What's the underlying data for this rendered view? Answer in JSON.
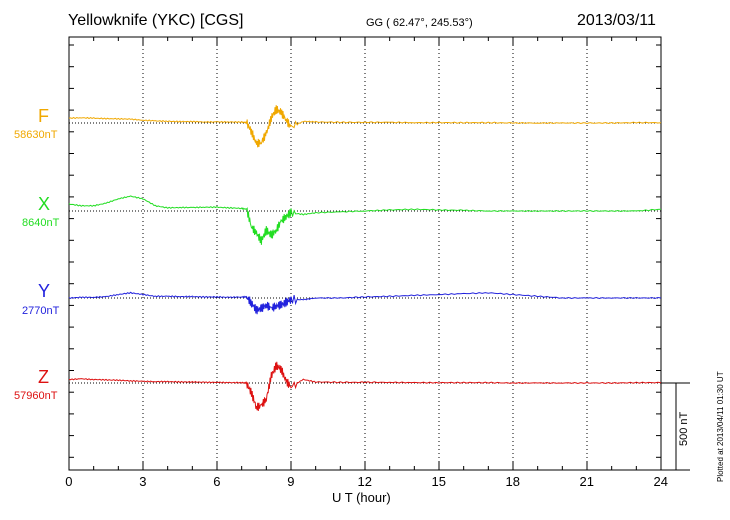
{
  "header": {
    "title": "Yellowknife (YKC)  [CGS]",
    "coords": "GG ( 62.47°, 245.53°)",
    "date": "2013/03/11"
  },
  "scale_label": "500 nT",
  "plotted_note": "Plotted at 2013/04/11 01:30 UT",
  "chart_data": {
    "type": "line",
    "xlabel": "U T (hour)",
    "xlim": [
      0,
      24
    ],
    "xticks": [
      "0",
      "3",
      "6",
      "9",
      "12",
      "15",
      "18",
      "21",
      "24"
    ],
    "scale_nT": 500,
    "grid": "vertical dotted every 3 h; dotted baseline per component",
    "series": [
      {
        "name": "F",
        "baseline": "58630nT",
        "color": "#f0a800",
        "x": [
          0,
          0.5,
          1,
          1.5,
          2,
          2.5,
          3,
          3.5,
          4,
          4.5,
          5,
          5.5,
          6,
          6.5,
          7,
          7.2,
          7.4,
          7.6,
          7.8,
          8,
          8.2,
          8.4,
          8.6,
          8.8,
          9,
          9.5,
          10,
          11,
          12,
          13,
          14,
          15,
          16,
          17,
          18,
          19,
          20,
          21,
          22,
          23,
          24
        ],
        "values": [
          28,
          30,
          28,
          25,
          24,
          22,
          16,
          12,
          10,
          8,
          8,
          6,
          6,
          6,
          5,
          2,
          -50,
          -120,
          -110,
          -60,
          30,
          80,
          60,
          20,
          -25,
          10,
          6,
          4,
          4,
          4,
          2,
          2,
          2,
          2,
          0,
          0,
          0,
          0,
          0,
          2,
          2
        ]
      },
      {
        "name": "X",
        "baseline": "8640nT",
        "color": "#22dd22",
        "x": [
          0,
          0.5,
          1,
          1.5,
          2,
          2.5,
          3,
          3.5,
          4,
          4.5,
          5,
          5.5,
          6,
          6.5,
          7,
          7.2,
          7.4,
          7.6,
          7.8,
          8,
          8.2,
          8.4,
          8.6,
          8.8,
          9,
          9.5,
          10,
          11,
          12,
          13,
          14,
          15,
          16,
          17,
          18,
          19,
          20,
          21,
          22,
          23,
          24
        ],
        "values": [
          40,
          30,
          30,
          45,
          70,
          85,
          70,
          30,
          18,
          20,
          20,
          22,
          22,
          18,
          15,
          10,
          -90,
          -130,
          -170,
          -110,
          -140,
          -110,
          -60,
          -30,
          -10,
          -20,
          -10,
          -5,
          0,
          6,
          10,
          6,
          4,
          0,
          0,
          0,
          0,
          0,
          0,
          0,
          10
        ]
      },
      {
        "name": "Y",
        "baseline": "2770nT",
        "color": "#2222dd",
        "x": [
          0,
          0.5,
          1,
          1.5,
          2,
          2.5,
          3,
          3.5,
          4,
          4.5,
          5,
          5.5,
          6,
          6.5,
          7,
          7.2,
          7.4,
          7.6,
          7.8,
          8,
          8.2,
          8.4,
          8.6,
          8.8,
          9,
          9.5,
          10,
          11,
          12,
          13,
          14,
          15,
          16,
          17,
          18,
          19,
          20,
          21,
          22,
          23,
          24
        ],
        "values": [
          0,
          4,
          4,
          8,
          20,
          30,
          20,
          10,
          10,
          8,
          8,
          6,
          6,
          4,
          6,
          6,
          -30,
          -70,
          -60,
          -40,
          -60,
          -45,
          -40,
          -25,
          -8,
          -10,
          0,
          0,
          6,
          10,
          15,
          20,
          25,
          30,
          20,
          10,
          0,
          0,
          0,
          0,
          0
        ]
      },
      {
        "name": "Z",
        "baseline": "57960nT",
        "color": "#dd1111",
        "x": [
          0,
          0.5,
          1,
          1.5,
          2,
          2.5,
          3,
          3.5,
          4,
          4.5,
          5,
          5.5,
          6,
          6.5,
          7,
          7.2,
          7.4,
          7.6,
          7.8,
          8,
          8.2,
          8.4,
          8.6,
          8.8,
          9,
          9.5,
          10,
          11,
          12,
          13,
          14,
          15,
          16,
          17,
          18,
          19,
          20,
          21,
          22,
          23,
          24
        ],
        "values": [
          20,
          24,
          20,
          18,
          16,
          12,
          10,
          8,
          8,
          6,
          6,
          4,
          4,
          2,
          2,
          0,
          -60,
          -140,
          -130,
          -90,
          40,
          100,
          80,
          10,
          -20,
          20,
          6,
          4,
          4,
          4,
          2,
          2,
          2,
          2,
          0,
          0,
          0,
          0,
          0,
          2,
          2
        ]
      }
    ]
  }
}
